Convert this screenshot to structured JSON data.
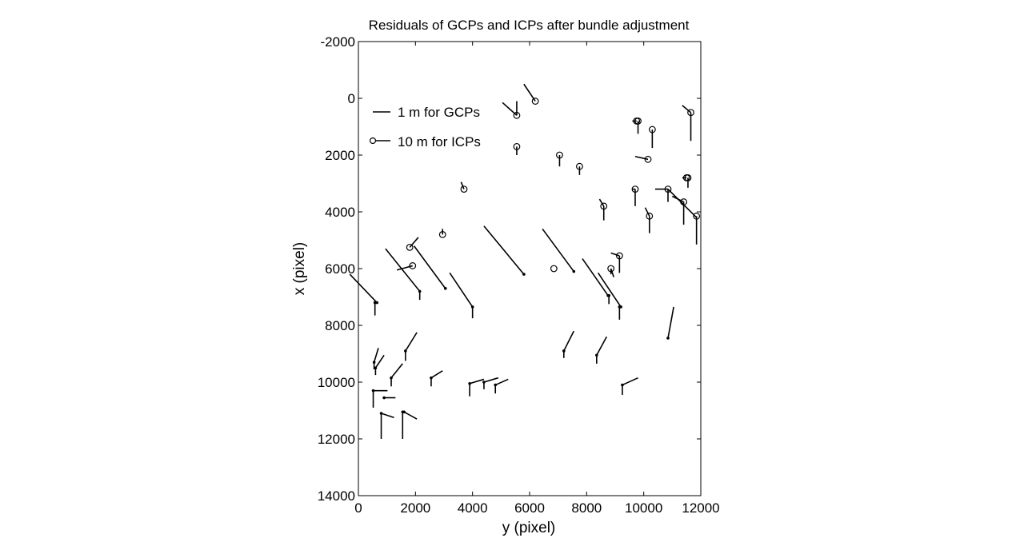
{
  "chart_data": {
    "type": "scatter",
    "title": "Residuals of GCPs and ICPs after bundle adjustment",
    "xlabel": "y (pixel)",
    "ylabel": "x (pixel)",
    "xlim": [
      0,
      12000
    ],
    "ylim": [
      -2000,
      14000
    ],
    "y_inverted": true,
    "xticks": [
      "0",
      "2000",
      "4000",
      "6000",
      "8000",
      "10000",
      "12000"
    ],
    "yticks": [
      "-2000",
      "0",
      "2000",
      "4000",
      "6000",
      "8000",
      "10000",
      "12000",
      "14000"
    ],
    "legend": {
      "position": "top-left",
      "entries": [
        {
          "label": "1 m for GCPs",
          "marker": "none"
        },
        {
          "label": "10 m for ICPs",
          "marker": "circle"
        }
      ]
    },
    "series": [
      {
        "name": "GCPs",
        "marker": "dot",
        "points": [
          [
            5800,
            6200,
            -1400,
            -1700
          ],
          [
            7550,
            6100,
            -1100,
            -1500
          ],
          [
            3050,
            6700,
            -1100,
            -1500
          ],
          [
            2150,
            6800,
            -1200,
            -1500
          ],
          [
            4000,
            7350,
            -800,
            -1200
          ],
          [
            650,
            7200,
            -950,
            -1000
          ],
          [
            8750,
            6950,
            -900,
            -1300
          ],
          [
            9200,
            7350,
            -800,
            -1200
          ],
          [
            10850,
            8450,
            200,
            -1100
          ],
          [
            7200,
            8900,
            350,
            -700
          ],
          [
            8350,
            9050,
            350,
            -650
          ],
          [
            1650,
            8900,
            400,
            -650
          ],
          [
            550,
            9300,
            150,
            -500
          ],
          [
            600,
            9500,
            300,
            -450
          ],
          [
            1150,
            9850,
            400,
            -500
          ],
          [
            2550,
            9850,
            400,
            -250
          ],
          [
            3900,
            10050,
            500,
            -150
          ],
          [
            4400,
            10000,
            500,
            -150
          ],
          [
            4800,
            10100,
            450,
            -200
          ],
          [
            9250,
            10100,
            550,
            -250
          ],
          [
            520,
            10300,
            500,
            0
          ],
          [
            900,
            10550,
            400,
            0
          ],
          [
            800,
            11100,
            450,
            150
          ],
          [
            1600,
            11050,
            450,
            250
          ],
          [
            520,
            10300,
            0,
            600
          ],
          [
            800,
            11100,
            0,
            900
          ],
          [
            1550,
            11050,
            0,
            950
          ],
          [
            3900,
            10050,
            0,
            450
          ],
          [
            9250,
            10100,
            0,
            350
          ],
          [
            580,
            7200,
            0,
            450
          ],
          [
            2150,
            6800,
            0,
            300
          ],
          [
            4000,
            7350,
            0,
            400
          ],
          [
            9150,
            7350,
            0,
            450
          ],
          [
            8780,
            6950,
            0,
            300
          ],
          [
            7200,
            8900,
            0,
            250
          ],
          [
            8350,
            9050,
            0,
            300
          ],
          [
            1650,
            8900,
            0,
            350
          ],
          [
            550,
            9300,
            0,
            250
          ],
          [
            600,
            9500,
            0,
            250
          ],
          [
            1150,
            9850,
            0,
            300
          ],
          [
            2550,
            9850,
            0,
            300
          ],
          [
            4400,
            10000,
            0,
            250
          ],
          [
            4800,
            10100,
            0,
            300
          ]
        ]
      },
      {
        "name": "ICPs",
        "marker": "circle",
        "points": [
          [
            5550,
            600,
            -500,
            -450
          ],
          [
            5550,
            600,
            0,
            -500
          ],
          [
            6200,
            100,
            -400,
            -600
          ],
          [
            5550,
            1700,
            0,
            300
          ],
          [
            7050,
            2000,
            0,
            400
          ],
          [
            7750,
            2400,
            0,
            300
          ],
          [
            9800,
            800,
            0,
            450
          ],
          [
            9750,
            800,
            -150,
            0
          ],
          [
            10300,
            1100,
            0,
            650
          ],
          [
            11650,
            500,
            0,
            1000
          ],
          [
            11650,
            500,
            -300,
            -250
          ],
          [
            10150,
            2150,
            -450,
            -100
          ],
          [
            11550,
            2800,
            0,
            350
          ],
          [
            11500,
            2800,
            -150,
            0
          ],
          [
            3700,
            3200,
            -100,
            -250
          ],
          [
            9700,
            3200,
            0,
            600
          ],
          [
            9700,
            3200,
            -100,
            0
          ],
          [
            10850,
            3200,
            -450,
            0
          ],
          [
            10850,
            3200,
            0,
            450
          ],
          [
            11400,
            3650,
            -400,
            -200
          ],
          [
            11400,
            3650,
            0,
            800
          ],
          [
            10850,
            3200,
            1000,
            1000
          ],
          [
            11850,
            4150,
            0,
            1000
          ],
          [
            8600,
            3800,
            0,
            500
          ],
          [
            8600,
            3800,
            -150,
            -250
          ],
          [
            10200,
            4150,
            0,
            600
          ],
          [
            10200,
            4150,
            -150,
            -300
          ],
          [
            1800,
            5250,
            300,
            -350
          ],
          [
            2950,
            4800,
            0,
            -200
          ],
          [
            1900,
            5900,
            -550,
            150
          ],
          [
            6850,
            6000,
            0,
            0
          ],
          [
            9150,
            5550,
            -300,
            -100
          ],
          [
            9150,
            5550,
            0,
            600
          ],
          [
            8850,
            6000,
            100,
            300
          ],
          [
            8850,
            6000,
            0,
            200
          ]
        ]
      }
    ]
  }
}
